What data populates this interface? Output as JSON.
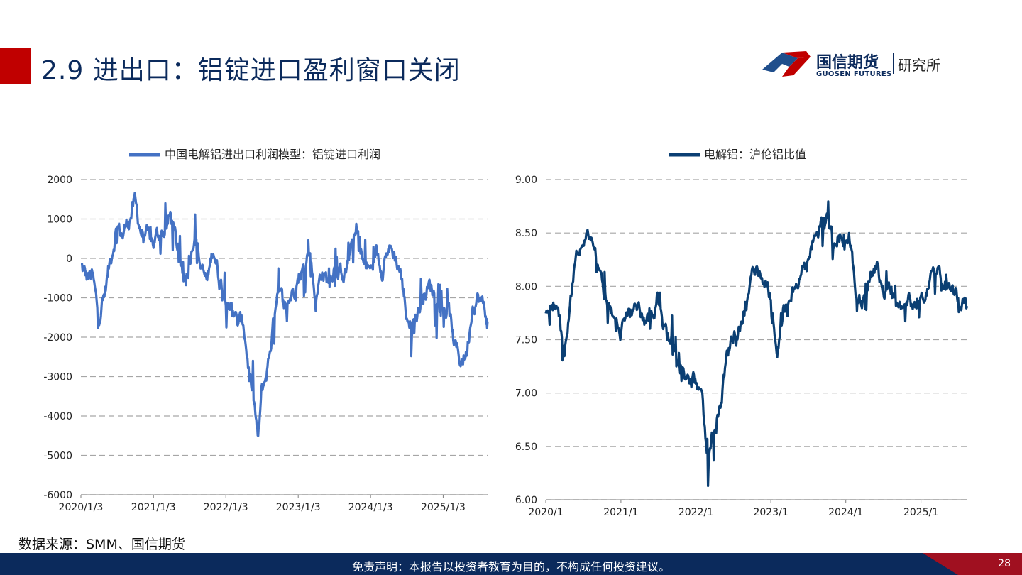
{
  "slide": {
    "title": "2.9 进出口：铝锭进口盈利窗口关闭",
    "logo": {
      "name": "国信期货",
      "english": "GUOSEN FUTURES",
      "department": "研究所"
    },
    "source": "数据来源：SMM、国信期货",
    "disclaimer": "免责声明：本报告以投资者教育为目的，不构成任何投资建议。",
    "page_number": "28",
    "colors": {
      "title": "#0b2a5c",
      "accent_red": "#c00000",
      "footer": "#0b2a5c"
    }
  },
  "chart_data": [
    {
      "type": "line",
      "legend": "中国电解铝进出口利润模型：铝锭进口利润",
      "legend_position": "top",
      "color": "#4472c4",
      "ylim": [
        -6000,
        2000
      ],
      "yticks": [
        2000,
        1000,
        0,
        -1000,
        -2000,
        -3000,
        -4000,
        -5000,
        -6000
      ],
      "xticks": [
        "2020/1/3",
        "2021/1/3",
        "2022/1/3",
        "2023/1/3",
        "2024/1/3",
        "2025/1/3"
      ],
      "xrange": [
        "2020-01-03",
        "2025-08-15"
      ],
      "grid": "horizontal dashed",
      "series": [
        {
          "points": [
            [
              "2020-01-03",
              -200
            ],
            [
              "2020-02-01",
              -500
            ],
            [
              "2020-03-01",
              -450
            ],
            [
              "2020-04-01",
              -1500
            ],
            [
              "2020-05-01",
              -900
            ],
            [
              "2020-06-01",
              0
            ],
            [
              "2020-07-01",
              800
            ],
            [
              "2020-08-01",
              600
            ],
            [
              "2020-09-01",
              1000
            ],
            [
              "2020-10-01",
              1400
            ],
            [
              "2020-11-01",
              700
            ],
            [
              "2020-12-01",
              500
            ],
            [
              "2021-01-03",
              400
            ],
            [
              "2021-02-01",
              650
            ],
            [
              "2021-03-01",
              700
            ],
            [
              "2021-04-01",
              1100
            ],
            [
              "2021-05-01",
              300
            ],
            [
              "2021-06-01",
              -500
            ],
            [
              "2021-07-01",
              -200
            ],
            [
              "2021-08-01",
              800
            ],
            [
              "2021-09-01",
              -300
            ],
            [
              "2021-10-01",
              -600
            ],
            [
              "2021-11-01",
              300
            ],
            [
              "2021-12-01",
              -500
            ],
            [
              "2022-01-03",
              -900
            ],
            [
              "2022-02-01",
              -1200
            ],
            [
              "2022-03-01",
              -1700
            ],
            [
              "2022-04-01",
              -1600
            ],
            [
              "2022-05-01",
              -2900
            ],
            [
              "2022-06-01",
              -4000
            ],
            [
              "2022-06-15",
              -4700
            ],
            [
              "2022-07-01",
              -3500
            ],
            [
              "2022-08-01",
              -2800
            ],
            [
              "2022-09-01",
              -1600
            ],
            [
              "2022-10-01",
              -900
            ],
            [
              "2022-11-01",
              -1300
            ],
            [
              "2022-12-01",
              -900
            ],
            [
              "2023-01-03",
              -500
            ],
            [
              "2023-02-01",
              -300
            ],
            [
              "2023-03-01",
              300
            ],
            [
              "2023-04-01",
              -1100
            ],
            [
              "2023-05-01",
              -300
            ],
            [
              "2023-06-01",
              -600
            ],
            [
              "2023-07-01",
              -200
            ],
            [
              "2023-08-01",
              -400
            ],
            [
              "2023-09-01",
              -300
            ],
            [
              "2023-10-01",
              400
            ],
            [
              "2023-11-01",
              600
            ],
            [
              "2023-12-01",
              -200
            ],
            [
              "2024-01-03",
              -300
            ],
            [
              "2024-02-01",
              200
            ],
            [
              "2024-03-01",
              -200
            ],
            [
              "2024-04-01",
              300
            ],
            [
              "2024-05-01",
              100
            ],
            [
              "2024-06-01",
              -300
            ],
            [
              "2024-07-01",
              -1400
            ],
            [
              "2024-08-01",
              -1800
            ],
            [
              "2024-09-01",
              -1300
            ],
            [
              "2024-10-01",
              -900
            ],
            [
              "2024-11-01",
              -700
            ],
            [
              "2024-12-01",
              -1000
            ],
            [
              "2025-01-03",
              -1200
            ],
            [
              "2025-02-01",
              -1400
            ],
            [
              "2025-03-01",
              -2200
            ],
            [
              "2025-04-01",
              -2600
            ],
            [
              "2025-05-01",
              -2400
            ],
            [
              "2025-06-01",
              -1100
            ],
            [
              "2025-07-01",
              -1000
            ],
            [
              "2025-08-01",
              -1300
            ],
            [
              "2025-08-15",
              -1600
            ]
          ]
        }
      ]
    },
    {
      "type": "line",
      "legend": "电解铝：沪伦铝比值",
      "legend_position": "top",
      "color": "#0b3f73",
      "ylim": [
        6.0,
        9.0
      ],
      "yticks": [
        "9.00",
        "8.50",
        "8.00",
        "7.50",
        "7.00",
        "6.50",
        "6.00"
      ],
      "xticks": [
        "2020/1",
        "2021/1",
        "2022/1",
        "2023/1",
        "2024/1",
        "2025/1"
      ],
      "xrange": [
        "2020-01-01",
        "2025-08-15"
      ],
      "grid": "horizontal dashed",
      "series": [
        {
          "points": [
            [
              "2020-01-01",
              7.7
            ],
            [
              "2020-02-01",
              7.9
            ],
            [
              "2020-03-01",
              7.8
            ],
            [
              "2020-04-01",
              7.4
            ],
            [
              "2020-05-01",
              7.9
            ],
            [
              "2020-06-01",
              8.3
            ],
            [
              "2020-07-01",
              8.45
            ],
            [
              "2020-08-01",
              8.5
            ],
            [
              "2020-09-01",
              8.3
            ],
            [
              "2020-10-01",
              8.0
            ],
            [
              "2020-11-01",
              7.8
            ],
            [
              "2020-12-01",
              7.7
            ],
            [
              "2021-01-01",
              7.55
            ],
            [
              "2021-02-01",
              7.7
            ],
            [
              "2021-03-01",
              7.8
            ],
            [
              "2021-04-01",
              7.85
            ],
            [
              "2021-05-01",
              7.6
            ],
            [
              "2021-06-01",
              7.75
            ],
            [
              "2021-07-01",
              7.9
            ],
            [
              "2021-08-01",
              7.6
            ],
            [
              "2021-09-01",
              7.55
            ],
            [
              "2021-10-01",
              7.3
            ],
            [
              "2021-11-01",
              7.2
            ],
            [
              "2021-12-01",
              7.1
            ],
            [
              "2022-01-01",
              7.1
            ],
            [
              "2022-02-01",
              6.9
            ],
            [
              "2022-03-01",
              6.4
            ],
            [
              "2022-04-01",
              6.7
            ],
            [
              "2022-05-01",
              6.9
            ],
            [
              "2022-06-01",
              7.3
            ],
            [
              "2022-07-01",
              7.5
            ],
            [
              "2022-08-01",
              7.6
            ],
            [
              "2022-09-01",
              7.8
            ],
            [
              "2022-10-01",
              8.1
            ],
            [
              "2022-11-01",
              8.2
            ],
            [
              "2022-12-01",
              8.05
            ],
            [
              "2023-01-01",
              7.9
            ],
            [
              "2023-02-01",
              7.3
            ],
            [
              "2023-03-01",
              7.75
            ],
            [
              "2023-04-01",
              7.9
            ],
            [
              "2023-05-01",
              8.0
            ],
            [
              "2023-06-01",
              8.15
            ],
            [
              "2023-07-01",
              8.2
            ],
            [
              "2023-08-01",
              8.5
            ],
            [
              "2023-09-01",
              8.55
            ],
            [
              "2023-10-01",
              8.6
            ],
            [
              "2023-11-01",
              8.4
            ],
            [
              "2023-12-01",
              8.5
            ],
            [
              "2024-01-01",
              8.45
            ],
            [
              "2024-02-01",
              8.3
            ],
            [
              "2024-03-01",
              7.8
            ],
            [
              "2024-04-01",
              7.9
            ],
            [
              "2024-05-01",
              8.1
            ],
            [
              "2024-06-01",
              8.2
            ],
            [
              "2024-07-01",
              7.9
            ],
            [
              "2024-08-01",
              8.0
            ],
            [
              "2024-09-01",
              7.85
            ],
            [
              "2024-10-01",
              7.8
            ],
            [
              "2024-11-01",
              7.9
            ],
            [
              "2024-12-01",
              7.8
            ],
            [
              "2025-01-01",
              7.85
            ],
            [
              "2025-02-01",
              7.95
            ],
            [
              "2025-03-01",
              8.25
            ],
            [
              "2025-04-01",
              8.2
            ],
            [
              "2025-05-01",
              8.05
            ],
            [
              "2025-06-01",
              8.0
            ],
            [
              "2025-07-01",
              7.9
            ],
            [
              "2025-08-01",
              7.85
            ],
            [
              "2025-08-15",
              7.8
            ]
          ]
        }
      ]
    }
  ]
}
